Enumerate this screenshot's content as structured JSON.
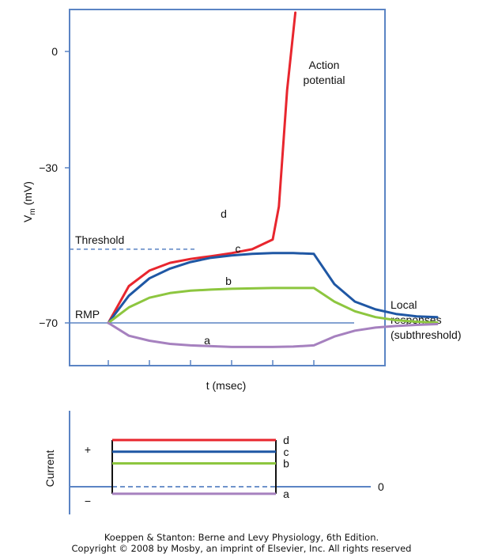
{
  "chart_data": [
    {
      "type": "line",
      "title": "",
      "xlabel": "t (msec)",
      "ylabel_main": "V",
      "ylabel_sub": "m",
      "ylabel_unit": " (mV)",
      "yticks": [
        0,
        -30,
        -70
      ],
      "ytick_labels": [
        "0",
        "−30",
        "−70"
      ],
      "ylim": [
        -81,
        10
      ],
      "xlim": [
        0,
        9
      ],
      "threshold": {
        "label": "Threshold",
        "value": -51
      },
      "rmp": {
        "label": "RMP",
        "value": -70
      },
      "annotations": {
        "action_potential": [
          "Action",
          "potential"
        ],
        "local_responses": [
          "Local",
          "responses",
          "(subthreshold)"
        ]
      },
      "series": [
        {
          "label": "d",
          "color": "#e8262e",
          "x": [
            1,
            1.5,
            2,
            2.5,
            3,
            3.5,
            4,
            4.5,
            5,
            5.15,
            5.35,
            5.55
          ],
          "y": [
            -70,
            -60.5,
            -56.5,
            -54.5,
            -53.5,
            -52.8,
            -52,
            -51,
            -48.5,
            -40,
            -10,
            10
          ]
        },
        {
          "label": "c",
          "color": "#1f57a4",
          "x": [
            1,
            1.5,
            2,
            2.5,
            3,
            3.5,
            4,
            4.5,
            5,
            5.5,
            6,
            6.5,
            7,
            7.5,
            8,
            8.5,
            9
          ],
          "y": [
            -70,
            -63,
            -58.5,
            -56,
            -54.3,
            -53.2,
            -52.6,
            -52.2,
            -52,
            -52,
            -52.2,
            -60,
            -64.5,
            -66.5,
            -67.7,
            -68.3,
            -68.5
          ]
        },
        {
          "label": "b",
          "color": "#8dc63f",
          "x": [
            1,
            1.5,
            2,
            2.5,
            3,
            3.5,
            4,
            4.5,
            5,
            5.5,
            6,
            6.5,
            7,
            7.5,
            8,
            8.5,
            9
          ],
          "y": [
            -70,
            -66,
            -63.5,
            -62.3,
            -61.7,
            -61.4,
            -61.2,
            -61.1,
            -61,
            -61,
            -61,
            -64.5,
            -67,
            -68.5,
            -69.3,
            -69.7,
            -69.9
          ]
        },
        {
          "label": "a",
          "color": "#a681bf",
          "x": [
            1,
            1.5,
            2,
            2.5,
            3,
            3.5,
            4,
            4.5,
            5,
            5.5,
            6,
            6.5,
            7,
            7.5,
            8,
            8.5,
            9
          ],
          "y": [
            -70,
            -73.3,
            -74.6,
            -75.4,
            -75.8,
            -76,
            -76.2,
            -76.2,
            -76.2,
            -76.1,
            -75.8,
            -73.5,
            -72,
            -71.2,
            -70.8,
            -70.5,
            -70.3
          ]
        }
      ]
    },
    {
      "type": "step",
      "ylabel": "Current",
      "plus_label": "+",
      "minus_label": "−",
      "zero_label": "0",
      "levels": [
        {
          "label": "d",
          "value": 4,
          "color": "#e8262e"
        },
        {
          "label": "c",
          "value": 3,
          "color": "#1f57a4"
        },
        {
          "label": "b",
          "value": 2,
          "color": "#8dc63f"
        },
        {
          "label": "a",
          "value": -0.6,
          "color": "#a681bf"
        }
      ]
    }
  ],
  "caption": {
    "line1": "Koeppen & Stanton: Berne and Levy Physiology, 6th Edition.",
    "line2": "Copyright © 2008 by Mosby, an imprint of Elsevier, Inc. All rights reserved"
  }
}
